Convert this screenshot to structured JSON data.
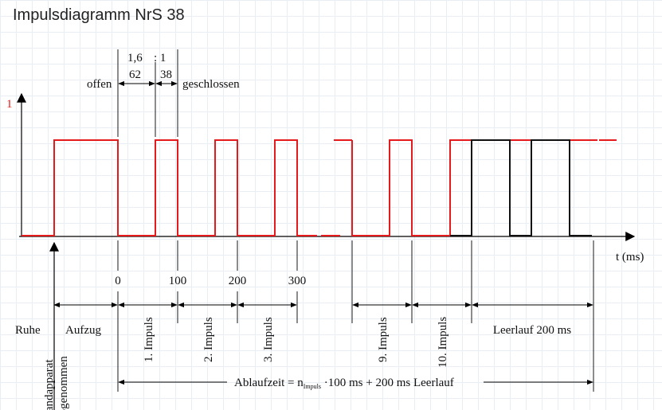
{
  "title": "Impulsdiagramm NrS 38",
  "colors": {
    "signal": "#e41a1c",
    "idle_pulses": "#111111",
    "axis": "#000000"
  },
  "y_axis_label": "1",
  "x_axis_label": "t (ms)",
  "ratio": {
    "left": "1,6",
    "colon": ": 1",
    "open_value": "62",
    "closed_value": "38"
  },
  "state_labels": {
    "open": "offen",
    "closed": "geschlossen"
  },
  "time_ticks": [
    "0",
    "100",
    "200",
    "300"
  ],
  "phase_labels": {
    "rest": "Ruhe",
    "wind": "Aufzug",
    "idle": "Leerlauf 200 ms"
  },
  "impulse_labels": [
    "1. Impuls",
    "2. Impuls",
    "3. Impuls",
    "9. Impuls",
    "10. Impuls"
  ],
  "handset_label": {
    "line1": "Handapparat",
    "line2": "abgenommen"
  },
  "runtime": {
    "prefix": "Ablaufzeit  = n",
    "subscript": "Impuls",
    "suffix": " ·100 ms + 200 ms Leerlauf"
  }
}
